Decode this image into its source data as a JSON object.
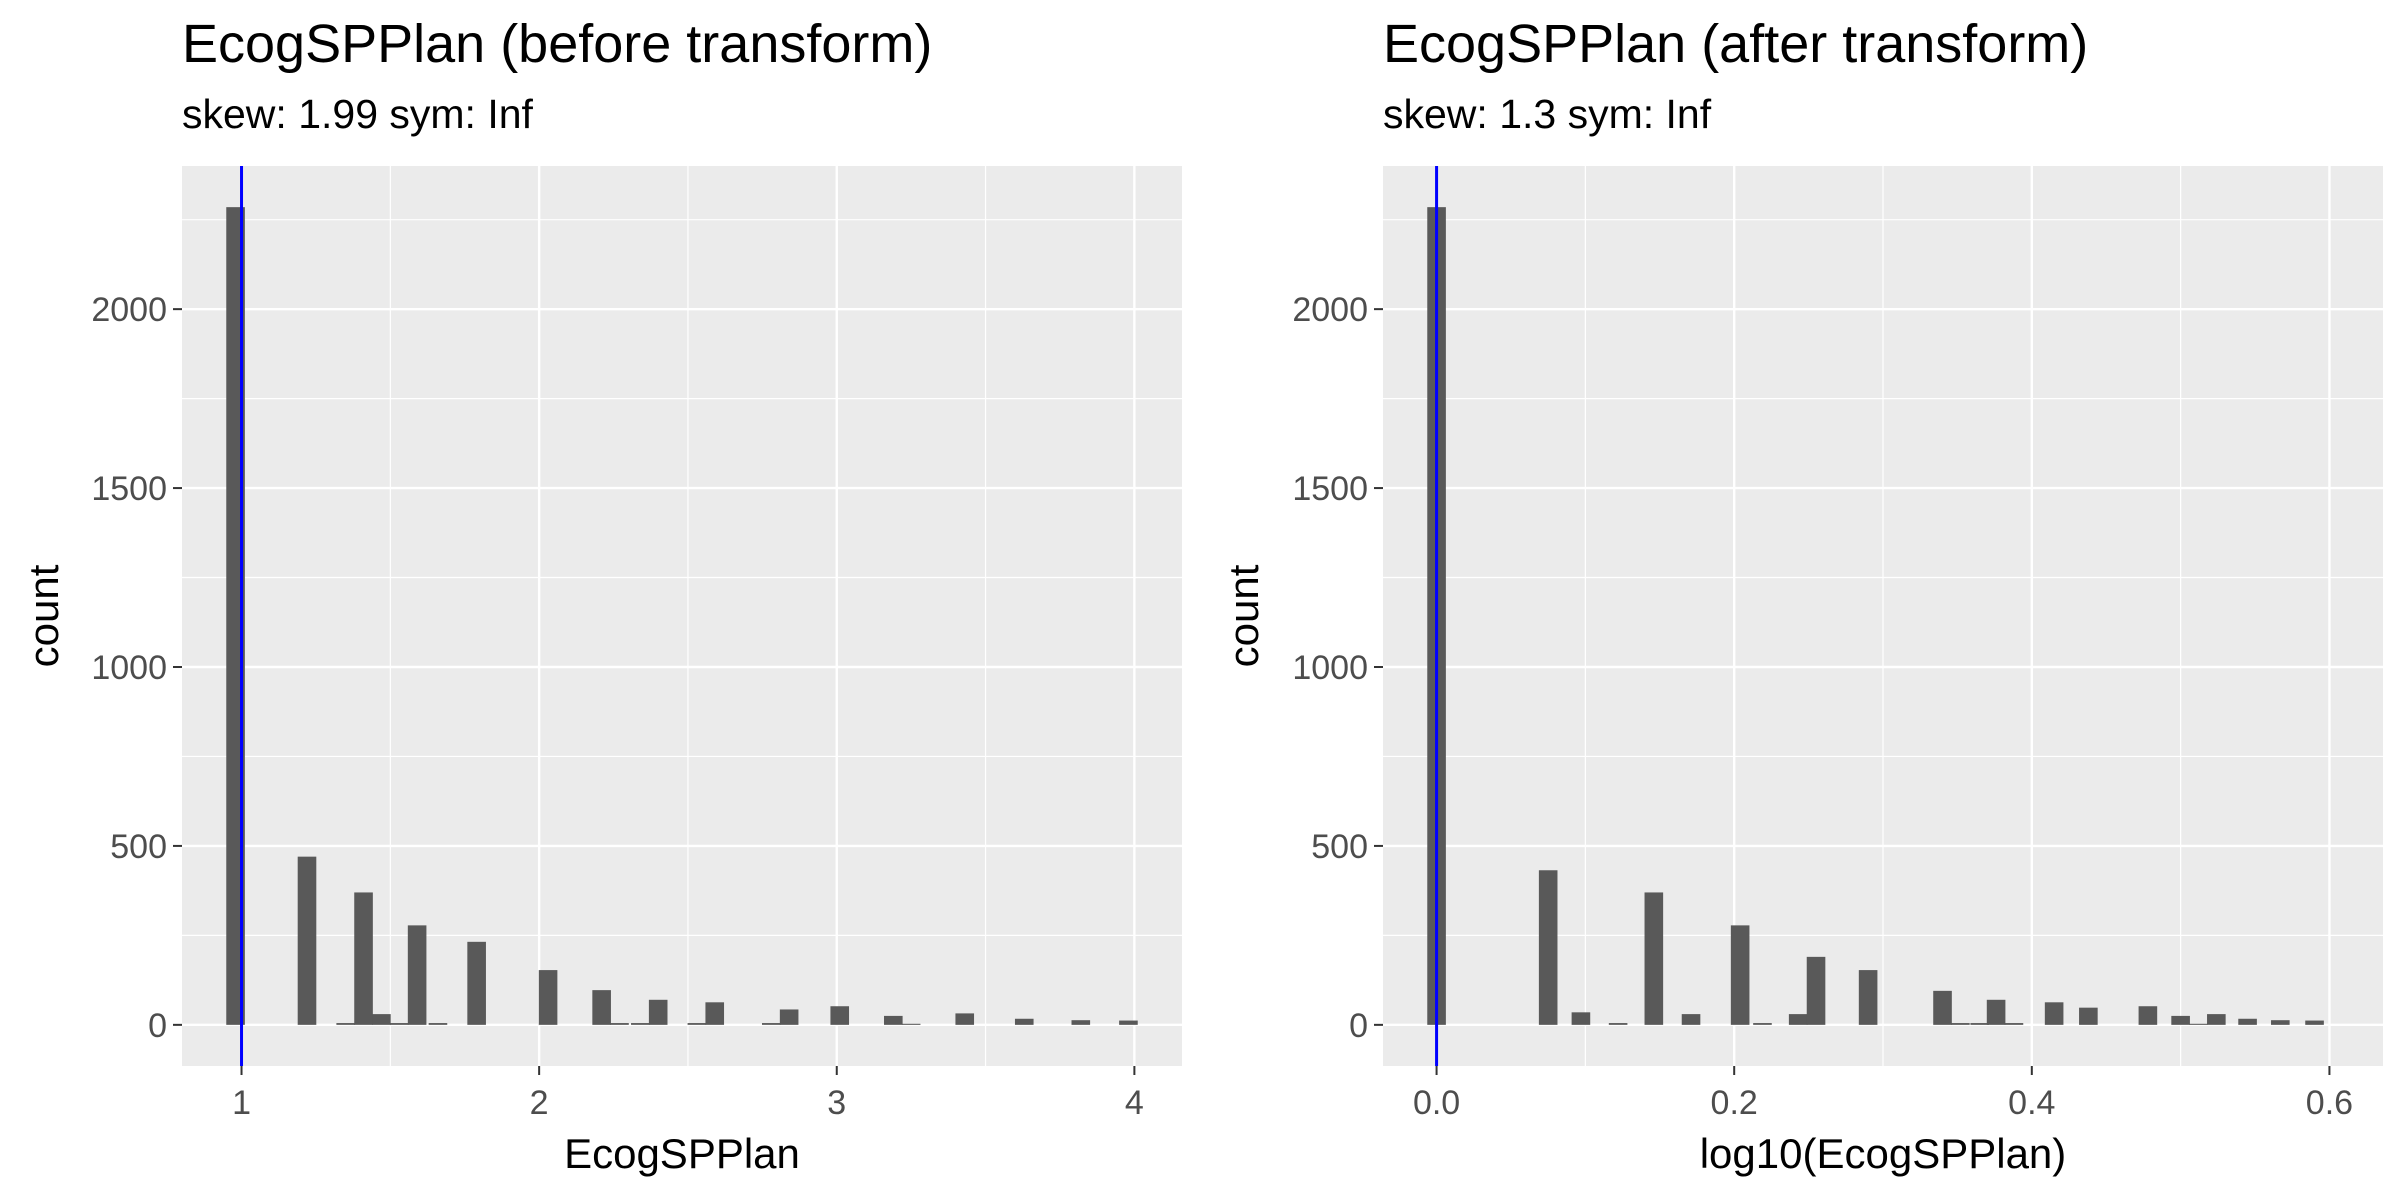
{
  "chart_data": [
    {
      "type": "bar",
      "title": "EcogSPPlan (before transform)",
      "subtitle": "skew: 1.99 sym: Inf",
      "xlabel": "EcogSPPlan",
      "ylabel": "count",
      "xlim": [
        0.8,
        4.16
      ],
      "ylim": [
        -115,
        2400
      ],
      "xticks": [
        1,
        2,
        3,
        4
      ],
      "xtick_labels": [
        "1",
        "2",
        "3",
        "4"
      ],
      "yticks": [
        0,
        500,
        1000,
        1500,
        2000
      ],
      "ytick_labels": [
        "0",
        "500",
        "1000",
        "1500",
        "2000"
      ],
      "grid": true,
      "bin_width": 0.0625,
      "bins": [
        {
          "x": 0.98,
          "count": 2285
        },
        {
          "x": 1.22,
          "count": 470
        },
        {
          "x": 1.35,
          "count": 5
        },
        {
          "x": 1.41,
          "count": 370
        },
        {
          "x": 1.47,
          "count": 30
        },
        {
          "x": 1.53,
          "count": 5
        },
        {
          "x": 1.59,
          "count": 278
        },
        {
          "x": 1.66,
          "count": 5
        },
        {
          "x": 1.79,
          "count": 232
        },
        {
          "x": 2.03,
          "count": 153
        },
        {
          "x": 2.21,
          "count": 97
        },
        {
          "x": 2.27,
          "count": 5
        },
        {
          "x": 2.34,
          "count": 5
        },
        {
          "x": 2.4,
          "count": 70
        },
        {
          "x": 2.53,
          "count": 5
        },
        {
          "x": 2.59,
          "count": 63
        },
        {
          "x": 2.78,
          "count": 5
        },
        {
          "x": 2.84,
          "count": 43
        },
        {
          "x": 3.01,
          "count": 52
        },
        {
          "x": 3.19,
          "count": 25
        },
        {
          "x": 3.25,
          "count": 3
        },
        {
          "x": 3.43,
          "count": 32
        },
        {
          "x": 3.63,
          "count": 17
        },
        {
          "x": 3.82,
          "count": 13
        },
        {
          "x": 3.98,
          "count": 12
        }
      ],
      "vline": {
        "x": 1,
        "color": "#0000ff"
      },
      "bar_color": "#595959"
    },
    {
      "type": "bar",
      "title": "EcogSPPlan (after transform)",
      "subtitle": "skew: 1.3 sym: Inf",
      "xlabel": "log10(EcogSPPlan)",
      "ylabel": "count",
      "xlim": [
        -0.036,
        0.636
      ],
      "ylim": [
        -115,
        2400
      ],
      "xticks": [
        0,
        0.2,
        0.4,
        0.6
      ],
      "xtick_labels": [
        "0.0",
        "0.2",
        "0.4",
        "0.6"
      ],
      "yticks": [
        0,
        500,
        1000,
        1500,
        2000
      ],
      "ytick_labels": [
        "0",
        "500",
        "1000",
        "1500",
        "2000"
      ],
      "grid": true,
      "bin_width": 0.0125,
      "bins": [
        {
          "x": 0.0,
          "count": 2285
        },
        {
          "x": 0.075,
          "count": 432
        },
        {
          "x": 0.097,
          "count": 35
        },
        {
          "x": 0.122,
          "count": 5
        },
        {
          "x": 0.146,
          "count": 370
        },
        {
          "x": 0.171,
          "count": 30
        },
        {
          "x": 0.204,
          "count": 278
        },
        {
          "x": 0.219,
          "count": 5
        },
        {
          "x": 0.243,
          "count": 30
        },
        {
          "x": 0.255,
          "count": 190
        },
        {
          "x": 0.29,
          "count": 153
        },
        {
          "x": 0.34,
          "count": 95
        },
        {
          "x": 0.352,
          "count": 5
        },
        {
          "x": 0.365,
          "count": 5
        },
        {
          "x": 0.376,
          "count": 70
        },
        {
          "x": 0.388,
          "count": 5
        },
        {
          "x": 0.415,
          "count": 63
        },
        {
          "x": 0.438,
          "count": 48
        },
        {
          "x": 0.478,
          "count": 52
        },
        {
          "x": 0.5,
          "count": 25
        },
        {
          "x": 0.512,
          "count": 3
        },
        {
          "x": 0.524,
          "count": 30
        },
        {
          "x": 0.545,
          "count": 17
        },
        {
          "x": 0.567,
          "count": 13
        },
        {
          "x": 0.59,
          "count": 12
        }
      ],
      "vline": {
        "x": 0,
        "color": "#0000ff"
      },
      "bar_color": "#595959"
    }
  ]
}
